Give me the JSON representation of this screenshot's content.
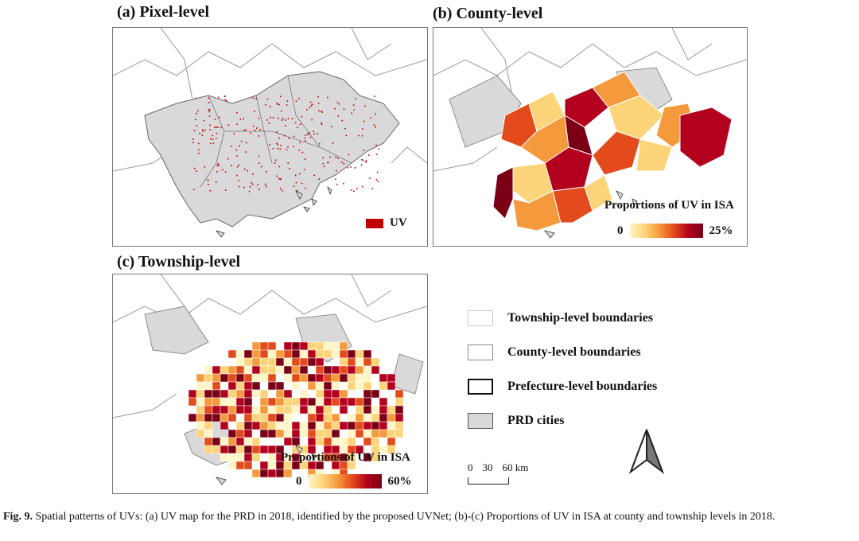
{
  "panels": {
    "a": {
      "title": "(a) Pixel-level",
      "legend_label": "UV",
      "legend_color": "#c00000"
    },
    "b": {
      "title": "(b) County-level",
      "ramp_title": "Proportions of UV in ISA",
      "ramp_min": "0",
      "ramp_max": "25%"
    },
    "c": {
      "title": "(c) Township-level",
      "ramp_title": "Proportions of UV in ISA",
      "ramp_min": "0",
      "ramp_max": "60%"
    }
  },
  "legend": {
    "township": "Township-level boundaries",
    "county": "County-level boundaries",
    "prefecture": "Prefecture-level boundaries",
    "cities": "PRD cities"
  },
  "scalebar": {
    "labels": [
      "0",
      "30",
      "60 km"
    ]
  },
  "caption": {
    "label": "Fig. 9.",
    "text": "Spatial patterns of UVs: (a) UV map for the PRD in 2018, identified by the proposed UVNet; (b)-(c) Proportions of UV in ISA at county and township levels in 2018."
  },
  "colors": {
    "uv": "#c00000",
    "prd_gray": "#d9d9d9",
    "ramp": [
      "#fff5c8",
      "#fdd47a",
      "#f59a3c",
      "#e34a1c",
      "#b3001e",
      "#7a0015"
    ]
  }
}
